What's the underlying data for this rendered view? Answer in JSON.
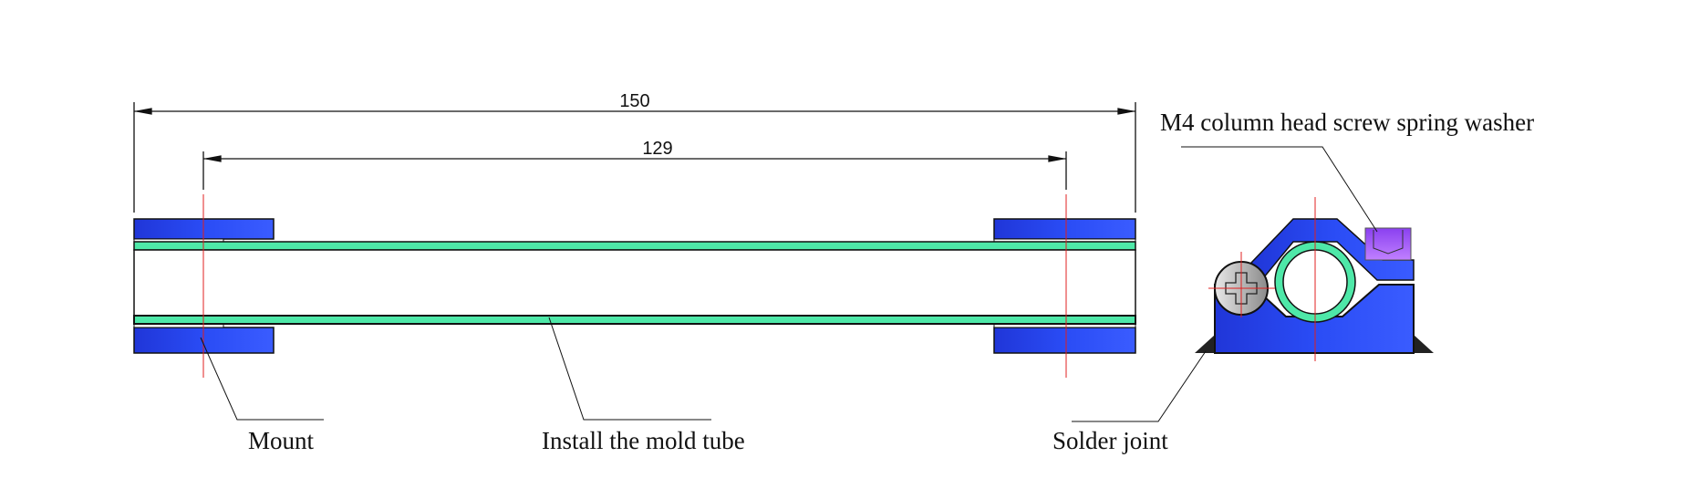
{
  "dimensions": {
    "overall": "150",
    "mount_spacing": "129"
  },
  "labels": {
    "mount": "Mount",
    "tube": "Install the mold tube",
    "solder": "Solder joint",
    "screw": "M4 column head screw spring washer"
  },
  "colors": {
    "mount_blue": "#2a4cf5",
    "tube_green": "#4ee8a8",
    "screw_purple": "#9a50f0",
    "centerline_red": "#e02020"
  }
}
